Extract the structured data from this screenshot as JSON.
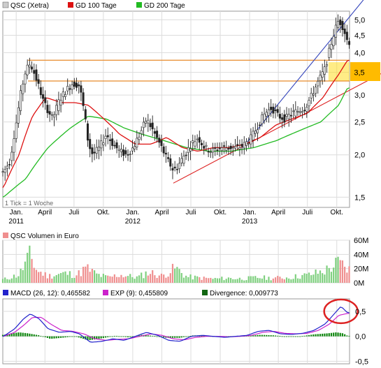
{
  "chart_data": [
    {
      "type": "line",
      "panel": "price",
      "yscale": "log",
      "ylim": [
        1.4,
        5.3
      ],
      "y_ticks": [
        "1,5",
        "2,0",
        "2,5",
        "3,0",
        "3,5",
        "4,0",
        "4,5",
        "5,0"
      ],
      "y_tick_values": [
        1.5,
        2.0,
        2.5,
        3.0,
        3.5,
        4.0,
        4.5,
        5.0
      ],
      "x_ticks": [
        "Jan.",
        "April",
        "Juli",
        "Okt.",
        "Jan.",
        "April",
        "Juli",
        "Okt.",
        "Jan.",
        "April",
        "Juli",
        "Okt."
      ],
      "x_tick_dates": [
        "2011-01-01",
        "2011-04-01",
        "2011-07-01",
        "2011-10-01",
        "2012-01-01",
        "2012-04-01",
        "2012-07-01",
        "2012-10-01",
        "2013-01-01",
        "2013-04-01",
        "2013-07-01",
        "2013-10-01"
      ],
      "year_labels": [
        "2011",
        "2012",
        "2013"
      ],
      "year_dates": [
        "2011-01-01",
        "2012-01-01",
        "2013-01-01"
      ],
      "x_range": [
        "2010-11-20",
        "2013-11-10"
      ],
      "grid": true,
      "legend": [
        {
          "label": "QSC (Xetra)",
          "color": "#333333"
        },
        {
          "label": "GD 100 Tage",
          "color": "#dd1111"
        },
        {
          "label": "GD 200 Tage",
          "color": "#22bb22"
        }
      ],
      "note": "1 Tick = 1 Woche",
      "price_points": [
        [
          "2010-11-22",
          1.78
        ],
        [
          "2010-12-13",
          1.92
        ],
        [
          "2011-01-03",
          2.55
        ],
        [
          "2011-01-17",
          3.1
        ],
        [
          "2011-01-31",
          3.55
        ],
        [
          "2011-02-14",
          3.72
        ],
        [
          "2011-02-28",
          3.45
        ],
        [
          "2011-03-14",
          3.15
        ],
        [
          "2011-03-28",
          2.85
        ],
        [
          "2011-04-11",
          2.7
        ],
        [
          "2011-04-25",
          2.55
        ],
        [
          "2011-05-16",
          2.9
        ],
        [
          "2011-06-06",
          3.1
        ],
        [
          "2011-06-27",
          3.25
        ],
        [
          "2011-07-18",
          3.2
        ],
        [
          "2011-08-01",
          2.7
        ],
        [
          "2011-08-15",
          2.15
        ],
        [
          "2011-08-29",
          2.0
        ],
        [
          "2011-09-19",
          2.1
        ],
        [
          "2011-10-10",
          2.3
        ],
        [
          "2011-10-31",
          2.15
        ],
        [
          "2011-11-21",
          2.05
        ],
        [
          "2011-12-12",
          2.0
        ],
        [
          "2012-01-02",
          2.1
        ],
        [
          "2012-01-23",
          2.3
        ],
        [
          "2012-02-13",
          2.55
        ],
        [
          "2012-03-05",
          2.35
        ],
        [
          "2012-03-26",
          2.15
        ],
        [
          "2012-04-16",
          1.95
        ],
        [
          "2012-05-07",
          1.8
        ],
        [
          "2012-05-21",
          1.85
        ],
        [
          "2012-06-11",
          2.0
        ],
        [
          "2012-07-02",
          2.15
        ],
        [
          "2012-07-23",
          2.25
        ],
        [
          "2012-08-13",
          2.1
        ],
        [
          "2012-09-03",
          2.05
        ],
        [
          "2012-10-01",
          2.1
        ],
        [
          "2012-10-29",
          2.1
        ],
        [
          "2012-11-26",
          2.1
        ],
        [
          "2012-12-17",
          2.15
        ],
        [
          "2013-01-07",
          2.25
        ],
        [
          "2013-01-28",
          2.45
        ],
        [
          "2013-02-18",
          2.65
        ],
        [
          "2013-03-11",
          2.75
        ],
        [
          "2013-04-01",
          2.6
        ],
        [
          "2013-04-22",
          2.55
        ],
        [
          "2013-05-13",
          2.65
        ],
        [
          "2013-06-03",
          2.7
        ],
        [
          "2013-06-24",
          2.75
        ],
        [
          "2013-07-15",
          3.0
        ],
        [
          "2013-08-05",
          3.3
        ],
        [
          "2013-08-26",
          3.6
        ],
        [
          "2013-09-09",
          4.1
        ],
        [
          "2013-09-23",
          4.6
        ],
        [
          "2013-10-07",
          5.0
        ],
        [
          "2013-10-21",
          4.75
        ],
        [
          "2013-11-04",
          4.3
        ]
      ],
      "gd100_points": [
        [
          "2010-11-22",
          1.6
        ],
        [
          "2011-01-10",
          2.0
        ],
        [
          "2011-02-21",
          2.6
        ],
        [
          "2011-04-04",
          2.95
        ],
        [
          "2011-05-23",
          2.85
        ],
        [
          "2011-07-04",
          2.85
        ],
        [
          "2011-08-15",
          2.8
        ],
        [
          "2011-10-03",
          2.55
        ],
        [
          "2011-11-21",
          2.3
        ],
        [
          "2012-01-09",
          2.15
        ],
        [
          "2012-02-27",
          2.15
        ],
        [
          "2012-04-16",
          2.25
        ],
        [
          "2012-06-04",
          2.1
        ],
        [
          "2012-07-23",
          2.05
        ],
        [
          "2012-09-10",
          2.1
        ],
        [
          "2012-10-29",
          2.1
        ],
        [
          "2012-12-17",
          2.15
        ],
        [
          "2013-02-04",
          2.25
        ],
        [
          "2013-03-25",
          2.45
        ],
        [
          "2013-05-13",
          2.55
        ],
        [
          "2013-07-01",
          2.65
        ],
        [
          "2013-08-19",
          2.95
        ],
        [
          "2013-10-07",
          3.45
        ],
        [
          "2013-11-04",
          3.8
        ]
      ],
      "gd200_points": [
        [
          "2010-11-22",
          1.5
        ],
        [
          "2011-01-31",
          1.7
        ],
        [
          "2011-04-11",
          2.1
        ],
        [
          "2011-06-20",
          2.4
        ],
        [
          "2011-08-15",
          2.6
        ],
        [
          "2011-10-10",
          2.55
        ],
        [
          "2011-12-05",
          2.4
        ],
        [
          "2012-01-30",
          2.3
        ],
        [
          "2012-04-09",
          2.2
        ],
        [
          "2012-06-18",
          2.1
        ],
        [
          "2012-08-27",
          2.05
        ],
        [
          "2012-11-05",
          2.05
        ],
        [
          "2013-01-14",
          2.1
        ],
        [
          "2013-03-25",
          2.2
        ],
        [
          "2013-06-03",
          2.35
        ],
        [
          "2013-08-12",
          2.5
        ],
        [
          "2013-10-07",
          2.8
        ],
        [
          "2013-11-04",
          3.15
        ]
      ],
      "annotations": {
        "horizontal_lines": [
          3.8,
          3.3
        ],
        "highlight_band": [
          3.3,
          3.75
        ],
        "highlight_label": "3,5",
        "trendlines": [
          {
            "from": [
              "2012-05-07",
              1.65
            ],
            "to": [
              "2013-11-10",
              3.1
            ],
            "color": "#dd2222"
          },
          {
            "from": [
              "2012-12-10",
              2.1
            ],
            "to": [
              "2013-11-10",
              5.1
            ],
            "color": "#3344bb"
          }
        ]
      }
    },
    {
      "type": "bar",
      "panel": "volume",
      "title": "QSC Volumen in Euro",
      "y_ticks": [
        "0M",
        "20M",
        "40M",
        "60M"
      ],
      "y_tick_values": [
        0,
        20,
        40,
        60
      ],
      "ylim": [
        0,
        60
      ],
      "bar_color": "#ef8f8f",
      "bar_color_up": "#7fd07f",
      "volume_profile": [
        [
          "2010-11-22",
          5
        ],
        [
          "2011-01-10",
          12
        ],
        [
          "2011-01-31",
          30
        ],
        [
          "2011-02-14",
          40
        ],
        [
          "2011-03-07",
          18
        ],
        [
          "2011-04-11",
          10
        ],
        [
          "2011-05-30",
          14
        ],
        [
          "2011-07-11",
          12
        ],
        [
          "2011-08-08",
          22
        ],
        [
          "2011-09-12",
          12
        ],
        [
          "2011-10-17",
          8
        ],
        [
          "2011-11-21",
          12
        ],
        [
          "2012-01-16",
          8
        ],
        [
          "2012-02-20",
          16
        ],
        [
          "2012-04-02",
          10
        ],
        [
          "2012-05-14",
          22
        ],
        [
          "2012-06-18",
          9
        ],
        [
          "2012-08-06",
          7
        ],
        [
          "2012-09-17",
          6
        ],
        [
          "2012-10-29",
          7
        ],
        [
          "2012-12-10",
          6
        ],
        [
          "2013-01-28",
          8
        ],
        [
          "2013-03-11",
          7
        ],
        [
          "2013-05-06",
          8
        ],
        [
          "2013-07-08",
          12
        ],
        [
          "2013-08-26",
          18
        ],
        [
          "2013-09-16",
          24
        ],
        [
          "2013-10-07",
          30
        ],
        [
          "2013-11-04",
          20
        ]
      ]
    },
    {
      "type": "area",
      "panel": "macd",
      "legend": [
        {
          "label": "MACD (26, 12): 0,465582",
          "color": "#2222cc"
        },
        {
          "label": "EXP (9): 0,455809",
          "color": "#cc22cc"
        },
        {
          "label": "Divergence: 0,009773",
          "color": "#116611"
        }
      ],
      "y_ticks": [
        "0,5",
        "0,0",
        "-0,5"
      ],
      "y_tick_values": [
        0.5,
        0.0,
        -0.5
      ],
      "ylim": [
        -0.55,
        0.75
      ],
      "macd_points": [
        [
          "2010-11-22",
          0.0
        ],
        [
          "2010-12-27",
          0.15
        ],
        [
          "2011-01-24",
          0.35
        ],
        [
          "2011-02-14",
          0.45
        ],
        [
          "2011-03-14",
          0.35
        ],
        [
          "2011-04-11",
          0.15
        ],
        [
          "2011-05-16",
          0.08
        ],
        [
          "2011-06-20",
          0.1
        ],
        [
          "2011-07-18",
          0.05
        ],
        [
          "2011-08-22",
          -0.12
        ],
        [
          "2011-09-26",
          -0.1
        ],
        [
          "2011-10-31",
          -0.05
        ],
        [
          "2011-12-05",
          -0.08
        ],
        [
          "2012-01-09",
          0.0
        ],
        [
          "2012-02-13",
          0.08
        ],
        [
          "2012-03-19",
          0.02
        ],
        [
          "2012-04-23",
          -0.08
        ],
        [
          "2012-05-28",
          -0.1
        ],
        [
          "2012-07-02",
          0.0
        ],
        [
          "2012-08-06",
          0.02
        ],
        [
          "2012-09-10",
          0.0
        ],
        [
          "2012-10-15",
          -0.02
        ],
        [
          "2012-11-19",
          0.0
        ],
        [
          "2012-12-24",
          0.02
        ],
        [
          "2013-01-28",
          0.1
        ],
        [
          "2013-03-04",
          0.12
        ],
        [
          "2013-04-08",
          0.05
        ],
        [
          "2013-05-13",
          0.04
        ],
        [
          "2013-06-17",
          0.06
        ],
        [
          "2013-07-22",
          0.12
        ],
        [
          "2013-08-26",
          0.25
        ],
        [
          "2013-09-23",
          0.45
        ],
        [
          "2013-10-14",
          0.6
        ],
        [
          "2013-11-04",
          0.47
        ]
      ],
      "signal_points": [
        [
          "2010-11-22",
          0.0
        ],
        [
          "2010-12-27",
          0.08
        ],
        [
          "2011-01-24",
          0.22
        ],
        [
          "2011-02-21",
          0.38
        ],
        [
          "2011-03-21",
          0.38
        ],
        [
          "2011-04-18",
          0.25
        ],
        [
          "2011-05-23",
          0.12
        ],
        [
          "2011-06-27",
          0.1
        ],
        [
          "2011-08-01",
          0.05
        ],
        [
          "2011-09-05",
          -0.05
        ],
        [
          "2011-10-10",
          -0.08
        ],
        [
          "2011-11-14",
          -0.06
        ],
        [
          "2011-12-19",
          -0.05
        ],
        [
          "2012-01-23",
          0.0
        ],
        [
          "2012-02-27",
          0.05
        ],
        [
          "2012-04-02",
          0.02
        ],
        [
          "2012-05-07",
          -0.05
        ],
        [
          "2012-06-11",
          -0.07
        ],
        [
          "2012-07-16",
          -0.02
        ],
        [
          "2012-08-20",
          0.0
        ],
        [
          "2012-09-24",
          0.0
        ],
        [
          "2012-10-29",
          -0.01
        ],
        [
          "2012-12-03",
          0.0
        ],
        [
          "2013-01-07",
          0.02
        ],
        [
          "2013-02-11",
          0.08
        ],
        [
          "2013-03-18",
          0.1
        ],
        [
          "2013-04-22",
          0.06
        ],
        [
          "2013-05-27",
          0.05
        ],
        [
          "2013-07-01",
          0.06
        ],
        [
          "2013-08-05",
          0.12
        ],
        [
          "2013-09-09",
          0.25
        ],
        [
          "2013-10-07",
          0.42
        ],
        [
          "2013-11-04",
          0.46
        ]
      ],
      "divergence_points": [
        [
          "2010-11-22",
          0.03
        ],
        [
          "2011-01-10",
          0.08
        ],
        [
          "2011-02-07",
          0.06
        ],
        [
          "2011-03-14",
          0.02
        ],
        [
          "2011-04-18",
          -0.05
        ],
        [
          "2011-05-23",
          -0.03
        ],
        [
          "2011-07-04",
          0.0
        ],
        [
          "2011-08-15",
          -0.08
        ],
        [
          "2011-09-26",
          -0.04
        ],
        [
          "2011-11-07",
          0.01
        ],
        [
          "2011-12-19",
          -0.02
        ],
        [
          "2012-01-30",
          0.03
        ],
        [
          "2012-03-05",
          0.01
        ],
        [
          "2012-04-16",
          -0.03
        ],
        [
          "2012-05-28",
          -0.03
        ],
        [
          "2012-07-09",
          0.02
        ],
        [
          "2012-08-20",
          0.01
        ],
        [
          "2012-10-01",
          -0.01
        ],
        [
          "2012-11-12",
          0.0
        ],
        [
          "2012-12-24",
          0.01
        ],
        [
          "2013-02-04",
          0.03
        ],
        [
          "2013-03-18",
          0.02
        ],
        [
          "2013-04-29",
          -0.01
        ],
        [
          "2013-06-10",
          0.0
        ],
        [
          "2013-07-22",
          0.04
        ],
        [
          "2013-09-02",
          0.06
        ],
        [
          "2013-09-30",
          0.08
        ],
        [
          "2013-10-21",
          0.06
        ],
        [
          "2013-11-04",
          0.01
        ]
      ],
      "highlight": "circle around latest MACD / EXP values",
      "highlight_color": "#dd2222"
    }
  ]
}
